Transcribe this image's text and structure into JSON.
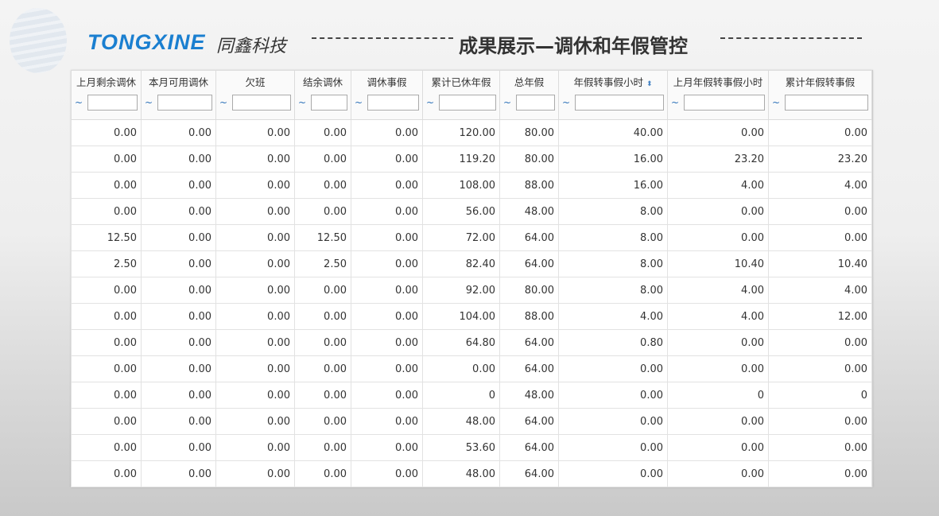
{
  "header": {
    "brand": "TONGXINE",
    "brand_cn": "同鑫科技",
    "title": "成果展示—调休和年假管控"
  },
  "columns": [
    "上月剩余调休",
    "本月可用调休",
    "欠班",
    "结余调休",
    "调休事假",
    "累计已休年假",
    "总年假",
    "年假转事假小时",
    "上月年假转事假小时",
    "累计年假转事假"
  ],
  "filter_prefix": "~",
  "sort_icon": "sort-arrows-icon",
  "rows": [
    [
      "0.00",
      "0.00",
      "0.00",
      "0.00",
      "0.00",
      "120.00",
      "80.00",
      "40.00",
      "0.00",
      "0.00"
    ],
    [
      "0.00",
      "0.00",
      "0.00",
      "0.00",
      "0.00",
      "119.20",
      "80.00",
      "16.00",
      "23.20",
      "23.20"
    ],
    [
      "0.00",
      "0.00",
      "0.00",
      "0.00",
      "0.00",
      "108.00",
      "88.00",
      "16.00",
      "4.00",
      "4.00"
    ],
    [
      "0.00",
      "0.00",
      "0.00",
      "0.00",
      "0.00",
      "56.00",
      "48.00",
      "8.00",
      "0.00",
      "0.00"
    ],
    [
      "12.50",
      "0.00",
      "0.00",
      "12.50",
      "0.00",
      "72.00",
      "64.00",
      "8.00",
      "0.00",
      "0.00"
    ],
    [
      "2.50",
      "0.00",
      "0.00",
      "2.50",
      "0.00",
      "82.40",
      "64.00",
      "8.00",
      "10.40",
      "10.40"
    ],
    [
      "0.00",
      "0.00",
      "0.00",
      "0.00",
      "0.00",
      "92.00",
      "80.00",
      "8.00",
      "4.00",
      "4.00"
    ],
    [
      "0.00",
      "0.00",
      "0.00",
      "0.00",
      "0.00",
      "104.00",
      "88.00",
      "4.00",
      "4.00",
      "12.00"
    ],
    [
      "0.00",
      "0.00",
      "0.00",
      "0.00",
      "0.00",
      "64.80",
      "64.00",
      "0.80",
      "0.00",
      "0.00"
    ],
    [
      "0.00",
      "0.00",
      "0.00",
      "0.00",
      "0.00",
      "0.00",
      "64.00",
      "0.00",
      "0.00",
      "0.00"
    ],
    [
      "0.00",
      "0.00",
      "0.00",
      "0.00",
      "0.00",
      "0",
      "48.00",
      "0.00",
      "0",
      "0"
    ],
    [
      "0.00",
      "0.00",
      "0.00",
      "0.00",
      "0.00",
      "48.00",
      "64.00",
      "0.00",
      "0.00",
      "0.00"
    ],
    [
      "0.00",
      "0.00",
      "0.00",
      "0.00",
      "0.00",
      "53.60",
      "64.00",
      "0.00",
      "0.00",
      "0.00"
    ],
    [
      "0.00",
      "0.00",
      "0.00",
      "0.00",
      "0.00",
      "48.00",
      "64.00",
      "0.00",
      "0.00",
      "0.00"
    ]
  ]
}
